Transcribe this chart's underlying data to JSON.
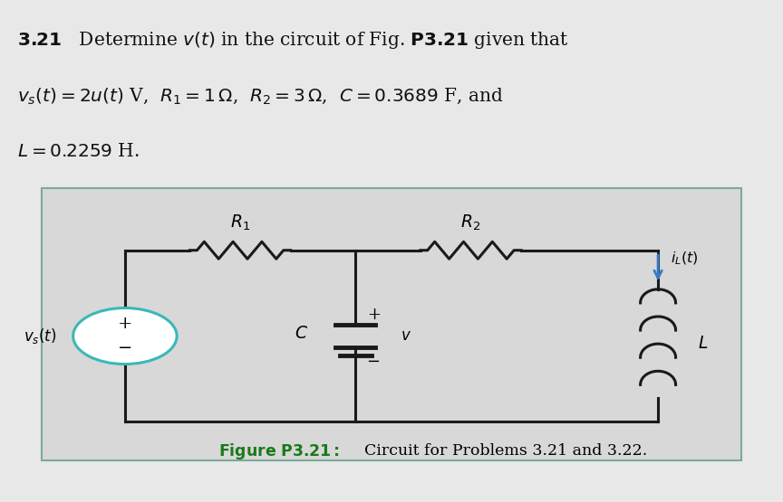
{
  "bg_color": "#e8e8e8",
  "box_bg": "#e0e0e0",
  "box_border": "#7aaa9a",
  "wire_color": "#1a1a1a",
  "source_circle_color": "#3ab8b8",
  "arrow_color": "#3a7ac8",
  "caption_color": "#1a7a1a",
  "text_color": "#111111"
}
